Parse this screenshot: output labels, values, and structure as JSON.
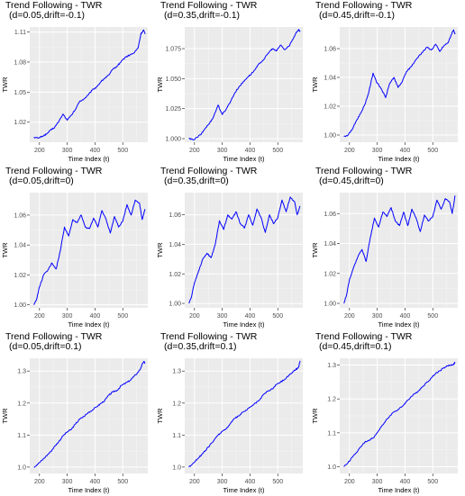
{
  "chart_data": [
    {
      "type": "line",
      "title": "Trend Following - TWR",
      "subtitle": "(d=0.05,drift=-0.1)",
      "xlabel": "Time Index (t)",
      "ylabel": "TWR",
      "xlim": [
        165,
        590
      ],
      "ylim": [
        1.0,
        1.115
      ],
      "xticks": [
        200,
        300,
        400,
        500
      ],
      "yticks": [
        1.02,
        1.05,
        1.08,
        1.11
      ],
      "line_color": "#0000ff",
      "grid": true,
      "series": [
        {
          "x": [
            180,
            195,
            210,
            225,
            240,
            255,
            270,
            285,
            300,
            315,
            330,
            345,
            360,
            375,
            390,
            405,
            420,
            435,
            450,
            465,
            480,
            495,
            510,
            525,
            540,
            555,
            565,
            575,
            580
          ],
          "y": [
            1.005,
            1.004,
            1.006,
            1.008,
            1.012,
            1.015,
            1.021,
            1.028,
            1.022,
            1.027,
            1.033,
            1.041,
            1.043,
            1.047,
            1.052,
            1.055,
            1.06,
            1.064,
            1.067,
            1.073,
            1.076,
            1.081,
            1.085,
            1.087,
            1.089,
            1.094,
            1.108,
            1.112,
            1.108
          ]
        }
      ]
    },
    {
      "type": "line",
      "title": "Trend Following - TWR",
      "subtitle": "(d=0.35,drift=-0.1)",
      "xlabel": "Time Index (t)",
      "ylabel": "TWR",
      "xlim": [
        165,
        590
      ],
      "ylim": [
        0.997,
        1.093
      ],
      "xticks": [
        200,
        300,
        400,
        500
      ],
      "yticks": [
        1.0,
        1.025,
        1.05,
        1.075
      ],
      "line_color": "#0000ff",
      "grid": true,
      "series": [
        {
          "x": [
            180,
            195,
            210,
            225,
            240,
            255,
            270,
            285,
            300,
            315,
            330,
            345,
            360,
            375,
            390,
            405,
            420,
            435,
            450,
            465,
            480,
            495,
            510,
            525,
            540,
            555,
            565,
            575,
            580
          ],
          "y": [
            1.0,
            0.999,
            1.001,
            1.004,
            1.009,
            1.013,
            1.019,
            1.028,
            1.02,
            1.025,
            1.031,
            1.038,
            1.043,
            1.047,
            1.051,
            1.054,
            1.058,
            1.063,
            1.066,
            1.071,
            1.075,
            1.073,
            1.078,
            1.074,
            1.077,
            1.083,
            1.088,
            1.091,
            1.089
          ]
        }
      ]
    },
    {
      "type": "line",
      "title": "Trend Following - TWR",
      "subtitle": "(d=0.45,drift=-0.1)",
      "xlabel": "Time Index (t)",
      "ylabel": "TWR",
      "xlim": [
        165,
        590
      ],
      "ylim": [
        0.995,
        1.075
      ],
      "xticks": [
        200,
        300,
        400,
        500
      ],
      "yticks": [
        1.0,
        1.02,
        1.04,
        1.06
      ],
      "line_color": "#0000ff",
      "grid": true,
      "series": [
        {
          "x": [
            180,
            195,
            210,
            225,
            240,
            255,
            270,
            285,
            300,
            315,
            330,
            345,
            360,
            375,
            390,
            405,
            420,
            435,
            450,
            465,
            480,
            495,
            510,
            525,
            540,
            555,
            565,
            575,
            580
          ],
          "y": [
            0.999,
            1.0,
            1.004,
            1.01,
            1.015,
            1.021,
            1.03,
            1.043,
            1.036,
            1.032,
            1.026,
            1.036,
            1.04,
            1.033,
            1.037,
            1.044,
            1.047,
            1.051,
            1.055,
            1.058,
            1.061,
            1.059,
            1.063,
            1.058,
            1.062,
            1.064,
            1.069,
            1.073,
            1.07
          ]
        }
      ]
    },
    {
      "type": "line",
      "title": "Trend Following - TWR",
      "subtitle": "(d=0.05,drift=0)",
      "xlabel": "Time Index (t)",
      "ylabel": "TWR",
      "xlim": [
        165,
        590
      ],
      "ylim": [
        0.998,
        1.075
      ],
      "xticks": [
        200,
        300,
        400,
        500
      ],
      "yticks": [
        1.0,
        1.02,
        1.04,
        1.06
      ],
      "line_color": "#0000ff",
      "grid": true,
      "series": [
        {
          "x": [
            180,
            190,
            200,
            215,
            230,
            245,
            260,
            275,
            290,
            305,
            320,
            335,
            350,
            365,
            380,
            395,
            410,
            425,
            440,
            455,
            470,
            485,
            500,
            515,
            530,
            545,
            560,
            570,
            580
          ],
          "y": [
            1.0,
            1.004,
            1.012,
            1.02,
            1.023,
            1.028,
            1.024,
            1.036,
            1.052,
            1.046,
            1.057,
            1.055,
            1.06,
            1.052,
            1.051,
            1.058,
            1.052,
            1.063,
            1.057,
            1.048,
            1.059,
            1.052,
            1.056,
            1.067,
            1.06,
            1.07,
            1.068,
            1.057,
            1.064
          ]
        }
      ]
    },
    {
      "type": "line",
      "title": "Trend Following - TWR",
      "subtitle": "(d=0.35,drift=0)",
      "xlabel": "Time Index (t)",
      "ylabel": "TWR",
      "xlim": [
        165,
        590
      ],
      "ylim": [
        0.997,
        1.075
      ],
      "xticks": [
        200,
        300,
        400,
        500
      ],
      "yticks": [
        1.0,
        1.02,
        1.04,
        1.06
      ],
      "line_color": "#0000ff",
      "grid": true,
      "series": [
        {
          "x": [
            180,
            190,
            200,
            215,
            230,
            245,
            260,
            275,
            290,
            305,
            320,
            335,
            350,
            365,
            380,
            395,
            410,
            425,
            440,
            455,
            470,
            485,
            500,
            515,
            530,
            545,
            560,
            570,
            580
          ],
          "y": [
            1.0,
            1.005,
            1.014,
            1.022,
            1.03,
            1.034,
            1.031,
            1.04,
            1.056,
            1.05,
            1.06,
            1.057,
            1.062,
            1.054,
            1.051,
            1.06,
            1.053,
            1.064,
            1.058,
            1.048,
            1.06,
            1.054,
            1.058,
            1.07,
            1.062,
            1.072,
            1.069,
            1.06,
            1.066
          ]
        }
      ]
    },
    {
      "type": "line",
      "title": "Trend Following - TWR",
      "subtitle": "(d=0.45,drift=0)",
      "xlabel": "Time Index (t)",
      "ylabel": "TWR",
      "xlim": [
        165,
        590
      ],
      "ylim": [
        0.997,
        1.074
      ],
      "xticks": [
        200,
        300,
        400,
        500
      ],
      "yticks": [
        1.0,
        1.02,
        1.04,
        1.06
      ],
      "line_color": "#0000ff",
      "grid": true,
      "series": [
        {
          "x": [
            180,
            190,
            200,
            215,
            230,
            245,
            260,
            275,
            290,
            305,
            320,
            335,
            350,
            365,
            380,
            395,
            410,
            425,
            440,
            455,
            470,
            485,
            500,
            515,
            530,
            545,
            560,
            570,
            580
          ],
          "y": [
            1.0,
            1.006,
            1.016,
            1.024,
            1.031,
            1.036,
            1.028,
            1.044,
            1.057,
            1.051,
            1.061,
            1.058,
            1.064,
            1.055,
            1.052,
            1.061,
            1.052,
            1.063,
            1.057,
            1.048,
            1.059,
            1.055,
            1.058,
            1.069,
            1.063,
            1.07,
            1.068,
            1.06,
            1.072
          ]
        }
      ]
    },
    {
      "type": "line",
      "title": "Trend Following - TWR",
      "subtitle": "(d=0.05,drift=0.1)",
      "xlabel": "Time Index (t)",
      "ylabel": "TWR",
      "xlim": [
        165,
        590
      ],
      "ylim": [
        0.98,
        1.34
      ],
      "xticks": [
        200,
        300,
        400,
        500
      ],
      "yticks": [
        1.0,
        1.1,
        1.2,
        1.3
      ],
      "line_color": "#0000ff",
      "grid": true,
      "series": [
        {
          "x": [
            180,
            195,
            210,
            225,
            240,
            255,
            270,
            285,
            300,
            315,
            330,
            345,
            360,
            375,
            390,
            405,
            420,
            435,
            450,
            465,
            480,
            495,
            510,
            525,
            540,
            555,
            565,
            575,
            580
          ],
          "y": [
            1.0,
            1.01,
            1.022,
            1.035,
            1.048,
            1.065,
            1.08,
            1.098,
            1.11,
            1.118,
            1.135,
            1.15,
            1.158,
            1.17,
            1.178,
            1.188,
            1.198,
            1.208,
            1.225,
            1.235,
            1.24,
            1.255,
            1.262,
            1.27,
            1.283,
            1.296,
            1.31,
            1.33,
            1.325
          ]
        }
      ]
    },
    {
      "type": "line",
      "title": "Trend Following - TWR",
      "subtitle": "(d=0.35,drift=0.1)",
      "xlabel": "Time Index (t)",
      "ylabel": "TWR",
      "xlim": [
        165,
        590
      ],
      "ylim": [
        0.98,
        1.34
      ],
      "xticks": [
        200,
        300,
        400,
        500
      ],
      "yticks": [
        1.0,
        1.1,
        1.2,
        1.3
      ],
      "line_color": "#0000ff",
      "grid": true,
      "series": [
        {
          "x": [
            180,
            195,
            210,
            225,
            240,
            255,
            270,
            285,
            300,
            315,
            330,
            345,
            360,
            375,
            390,
            405,
            420,
            435,
            450,
            465,
            480,
            495,
            510,
            525,
            540,
            555,
            565,
            575,
            580
          ],
          "y": [
            1.0,
            1.012,
            1.025,
            1.038,
            1.052,
            1.068,
            1.083,
            1.1,
            1.112,
            1.12,
            1.137,
            1.152,
            1.16,
            1.172,
            1.18,
            1.19,
            1.2,
            1.21,
            1.228,
            1.238,
            1.244,
            1.258,
            1.266,
            1.274,
            1.287,
            1.298,
            1.305,
            1.312,
            1.332
          ]
        }
      ]
    },
    {
      "type": "line",
      "title": "Trend Following - TWR",
      "subtitle": "(d=0.45,drift=0.1)",
      "xlabel": "Time Index (t)",
      "ylabel": "TWR",
      "xlim": [
        165,
        590
      ],
      "ylim": [
        0.98,
        1.32
      ],
      "xticks": [
        200,
        300,
        400,
        500
      ],
      "yticks": [
        1.0,
        1.1,
        1.2,
        1.3
      ],
      "line_color": "#0000ff",
      "grid": true,
      "series": [
        {
          "x": [
            180,
            195,
            210,
            225,
            240,
            255,
            270,
            285,
            300,
            315,
            330,
            345,
            360,
            375,
            390,
            405,
            420,
            435,
            450,
            465,
            480,
            495,
            510,
            525,
            540,
            555,
            565,
            575,
            580
          ],
          "y": [
            1.0,
            1.012,
            1.028,
            1.042,
            1.058,
            1.072,
            1.078,
            1.085,
            1.1,
            1.118,
            1.135,
            1.15,
            1.162,
            1.168,
            1.178,
            1.192,
            1.205,
            1.215,
            1.225,
            1.238,
            1.25,
            1.262,
            1.275,
            1.283,
            1.292,
            1.298,
            1.3,
            1.302,
            1.308
          ]
        }
      ]
    }
  ]
}
